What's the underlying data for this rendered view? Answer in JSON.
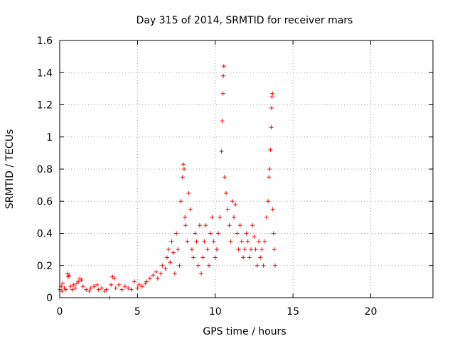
{
  "chart_data": {
    "type": "scatter",
    "title": "Day 315 of 2014, SRMTID for receiver mars",
    "xlabel": "GPS time / hours",
    "ylabel": "SRMTID / TECUs",
    "xlim": [
      0,
      24
    ],
    "ylim": [
      0,
      1.6
    ],
    "xticks": [
      0,
      5,
      10,
      15,
      20
    ],
    "xtick_labels": [
      "0",
      "5",
      "10",
      "15",
      "20"
    ],
    "yticks": [
      0,
      0.2,
      0.4,
      0.6,
      0.8,
      1,
      1.2,
      1.4,
      1.6
    ],
    "ytick_labels": [
      "0",
      "0.2",
      "0.4",
      "0.6",
      "0.8",
      "1",
      "1.2",
      "1.4",
      "1.6"
    ],
    "grid": true,
    "marker": "plus",
    "color": "#ff0000",
    "series": [
      {
        "name": "SRMTID",
        "points": [
          [
            0.0,
            0.05
          ],
          [
            0.1,
            0.07
          ],
          [
            0.15,
            0.04
          ],
          [
            0.2,
            0.09
          ],
          [
            0.3,
            0.06
          ],
          [
            0.4,
            0.05
          ],
          [
            0.5,
            0.15
          ],
          [
            0.55,
            0.13
          ],
          [
            0.6,
            0.14
          ],
          [
            0.7,
            0.07
          ],
          [
            0.8,
            0.05
          ],
          [
            0.9,
            0.08
          ],
          [
            1.0,
            0.06
          ],
          [
            1.1,
            0.09
          ],
          [
            1.2,
            0.1
          ],
          [
            1.3,
            0.12
          ],
          [
            1.4,
            0.11
          ],
          [
            1.5,
            0.07
          ],
          [
            1.7,
            0.05
          ],
          [
            1.9,
            0.04
          ],
          [
            2.0,
            0.06
          ],
          [
            2.2,
            0.07
          ],
          [
            2.4,
            0.08
          ],
          [
            2.5,
            0.05
          ],
          [
            2.7,
            0.06
          ],
          [
            2.9,
            0.04
          ],
          [
            3.0,
            0.05
          ],
          [
            3.2,
            0.0
          ],
          [
            3.3,
            0.08
          ],
          [
            3.4,
            0.13
          ],
          [
            3.5,
            0.12
          ],
          [
            3.6,
            0.06
          ],
          [
            3.8,
            0.08
          ],
          [
            4.0,
            0.05
          ],
          [
            4.2,
            0.07
          ],
          [
            4.4,
            0.06
          ],
          [
            4.6,
            0.05
          ],
          [
            4.8,
            0.1
          ],
          [
            5.0,
            0.06
          ],
          [
            5.1,
            0.08
          ],
          [
            5.3,
            0.07
          ],
          [
            5.5,
            0.09
          ],
          [
            5.6,
            0.1
          ],
          [
            5.8,
            0.12
          ],
          [
            6.0,
            0.14
          ],
          [
            6.2,
            0.16
          ],
          [
            6.3,
            0.12
          ],
          [
            6.5,
            0.15
          ],
          [
            6.6,
            0.2
          ],
          [
            6.8,
            0.18
          ],
          [
            6.9,
            0.25
          ],
          [
            7.0,
            0.3
          ],
          [
            7.1,
            0.22
          ],
          [
            7.2,
            0.35
          ],
          [
            7.3,
            0.28
          ],
          [
            7.4,
            0.15
          ],
          [
            7.5,
            0.4
          ],
          [
            7.6,
            0.3
          ],
          [
            7.7,
            0.2
          ],
          [
            7.8,
            0.6
          ],
          [
            7.9,
            0.75
          ],
          [
            7.95,
            0.83
          ],
          [
            8.0,
            0.8
          ],
          [
            8.05,
            0.5
          ],
          [
            8.1,
            0.45
          ],
          [
            8.2,
            0.35
          ],
          [
            8.3,
            0.65
          ],
          [
            8.4,
            0.55
          ],
          [
            8.5,
            0.3
          ],
          [
            8.6,
            0.25
          ],
          [
            8.7,
            0.4
          ],
          [
            8.8,
            0.35
          ],
          [
            8.9,
            0.2
          ],
          [
            9.0,
            0.45
          ],
          [
            9.1,
            0.15
          ],
          [
            9.2,
            0.25
          ],
          [
            9.3,
            0.35
          ],
          [
            9.4,
            0.45
          ],
          [
            9.5,
            0.3
          ],
          [
            9.6,
            0.2
          ],
          [
            9.7,
            0.4
          ],
          [
            9.8,
            0.5
          ],
          [
            9.9,
            0.35
          ],
          [
            10.0,
            0.25
          ],
          [
            10.1,
            0.3
          ],
          [
            10.2,
            0.4
          ],
          [
            10.3,
            0.5
          ],
          [
            10.4,
            0.91
          ],
          [
            10.45,
            1.1
          ],
          [
            10.5,
            1.27
          ],
          [
            10.52,
            1.38
          ],
          [
            10.55,
            1.44
          ],
          [
            10.6,
            0.75
          ],
          [
            10.7,
            0.65
          ],
          [
            10.8,
            0.55
          ],
          [
            10.9,
            0.45
          ],
          [
            11.0,
            0.35
          ],
          [
            11.1,
            0.6
          ],
          [
            11.2,
            0.5
          ],
          [
            11.3,
            0.58
          ],
          [
            11.4,
            0.4
          ],
          [
            11.5,
            0.3
          ],
          [
            11.6,
            0.45
          ],
          [
            11.7,
            0.35
          ],
          [
            11.8,
            0.25
          ],
          [
            11.9,
            0.3
          ],
          [
            12.0,
            0.4
          ],
          [
            12.1,
            0.35
          ],
          [
            12.2,
            0.25
          ],
          [
            12.3,
            0.3
          ],
          [
            12.4,
            0.45
          ],
          [
            12.5,
            0.38
          ],
          [
            12.6,
            0.3
          ],
          [
            12.7,
            0.2
          ],
          [
            12.8,
            0.35
          ],
          [
            12.9,
            0.25
          ],
          [
            13.0,
            0.3
          ],
          [
            13.1,
            0.2
          ],
          [
            13.2,
            0.35
          ],
          [
            13.3,
            0.5
          ],
          [
            13.4,
            0.6
          ],
          [
            13.45,
            0.75
          ],
          [
            13.5,
            0.8
          ],
          [
            13.55,
            0.92
          ],
          [
            13.6,
            1.06
          ],
          [
            13.62,
            1.18
          ],
          [
            13.65,
            1.25
          ],
          [
            13.68,
            1.27
          ],
          [
            13.7,
            0.55
          ],
          [
            13.75,
            0.4
          ],
          [
            13.8,
            0.3
          ],
          [
            13.85,
            0.2
          ]
        ]
      }
    ]
  }
}
